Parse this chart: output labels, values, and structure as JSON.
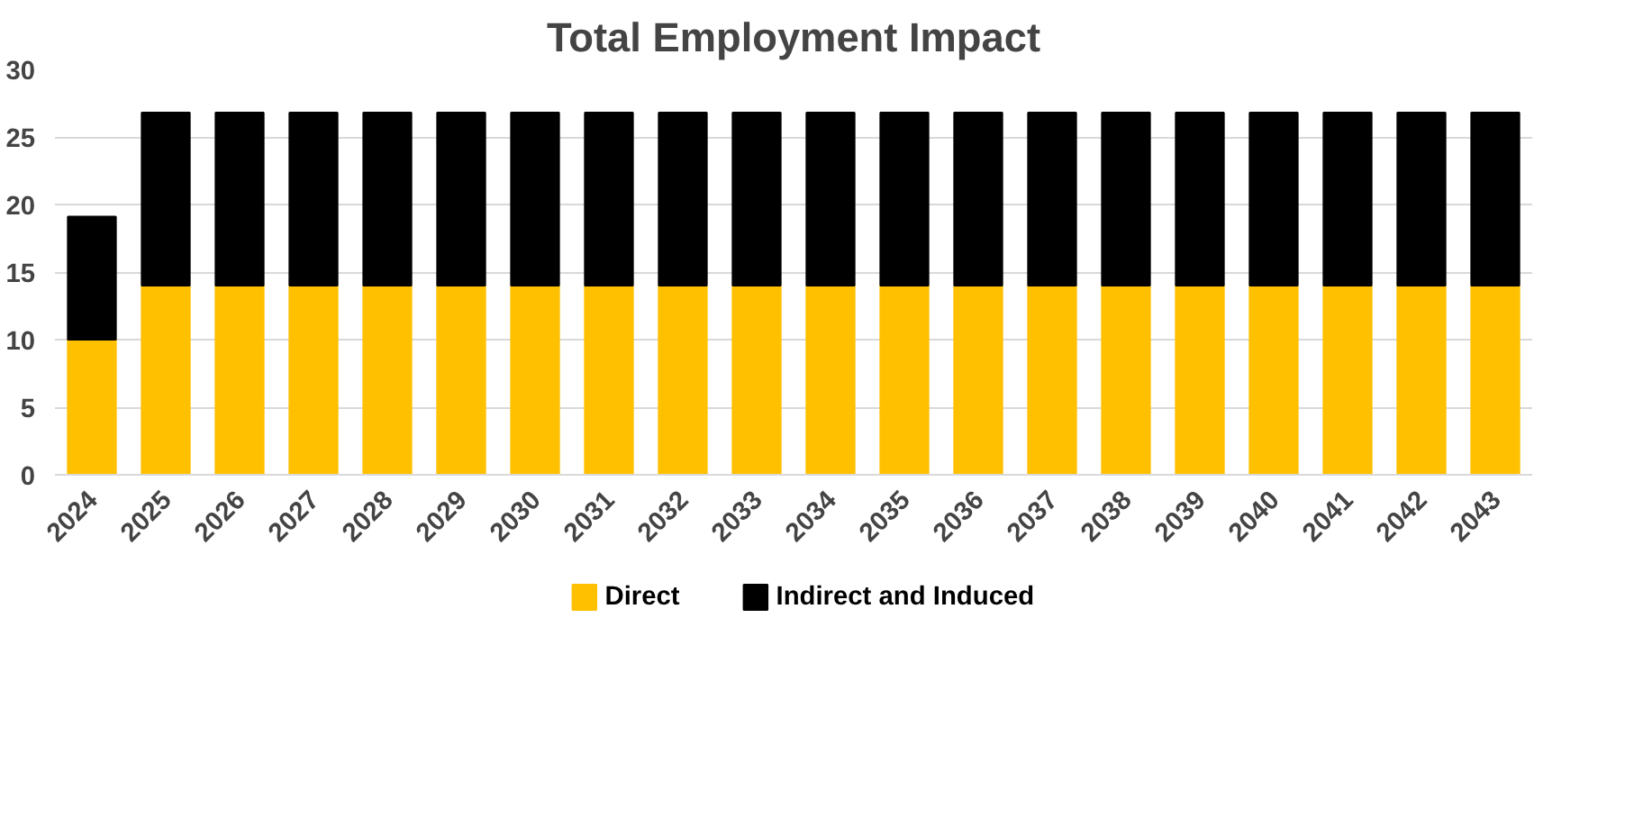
{
  "chart_data": {
    "type": "bar",
    "title": "Total Employment Impact",
    "stacked": true,
    "categories": [
      "2024",
      "2025",
      "2026",
      "2027",
      "2028",
      "2029",
      "2030",
      "2031",
      "2032",
      "2033",
      "2034",
      "2035",
      "2036",
      "2037",
      "2038",
      "2039",
      "2040",
      "2041",
      "2042",
      "2043"
    ],
    "series": [
      {
        "name": "Direct",
        "color": "#ffc000",
        "values": [
          10,
          14,
          14,
          14,
          14,
          14,
          14,
          14,
          14,
          14,
          14,
          14,
          14,
          14,
          14,
          14,
          14,
          14,
          14,
          14
        ]
      },
      {
        "name": "Indirect and Induced",
        "color": "#000000",
        "values": [
          9.1,
          12.8,
          12.8,
          12.8,
          12.8,
          12.8,
          12.8,
          12.8,
          12.8,
          12.8,
          12.8,
          12.8,
          12.8,
          12.8,
          12.8,
          12.8,
          12.8,
          12.8,
          12.8,
          12.8
        ]
      }
    ],
    "ylim": [
      0,
      30
    ],
    "yticks": [
      0,
      5,
      10,
      15,
      20,
      25,
      30
    ],
    "grid": "y",
    "legend": "bottom"
  }
}
